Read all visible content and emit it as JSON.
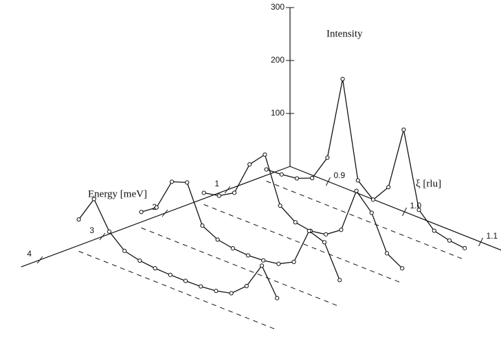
{
  "chart_data": {
    "type": "waterfall3d",
    "z_label": "Intensity",
    "y_label": "Energy [meV]",
    "x_label": "ξ [rlu]",
    "zlim": [
      0,
      300
    ],
    "zticks": [
      100,
      200,
      300
    ],
    "ylim": [
      0,
      4.3
    ],
    "yticks": [
      1,
      2,
      3,
      4
    ],
    "xlim": [
      0.85,
      1.13
    ],
    "xticks": [
      0.9,
      {
        "value": 1,
        "label": "1.0"
      },
      1.1
    ],
    "color": "#111111",
    "x": [
      0.86,
      0.88,
      0.9,
      0.92,
      0.94,
      0.96,
      0.98,
      1.0,
      1.02,
      1.04,
      1.06,
      1.08,
      1.1,
      1.12
    ],
    "series": [
      {
        "energy": 0.5,
        "values": [
          22,
          24,
          28,
          40,
          90,
          250,
          70,
          45,
          80,
          200,
          60,
          32,
          25,
          22
        ]
      },
      {
        "energy": 1.5,
        "values": [
          22,
          28,
          45,
          110,
          140,
          55,
          35,
          30,
          35,
          55,
          140,
          110,
          45,
          28
        ]
      },
      {
        "energy": 2.5,
        "values": [
          30,
          50,
          110,
          120,
          50,
          35,
          30,
          28,
          30,
          35,
          50,
          120,
          110,
          50
        ]
      },
      {
        "energy": 3.5,
        "values": [
          60,
          110,
          60,
          35,
          28,
          25,
          24,
          24,
          25,
          28,
          35,
          60,
          110,
          60
        ]
      }
    ]
  }
}
